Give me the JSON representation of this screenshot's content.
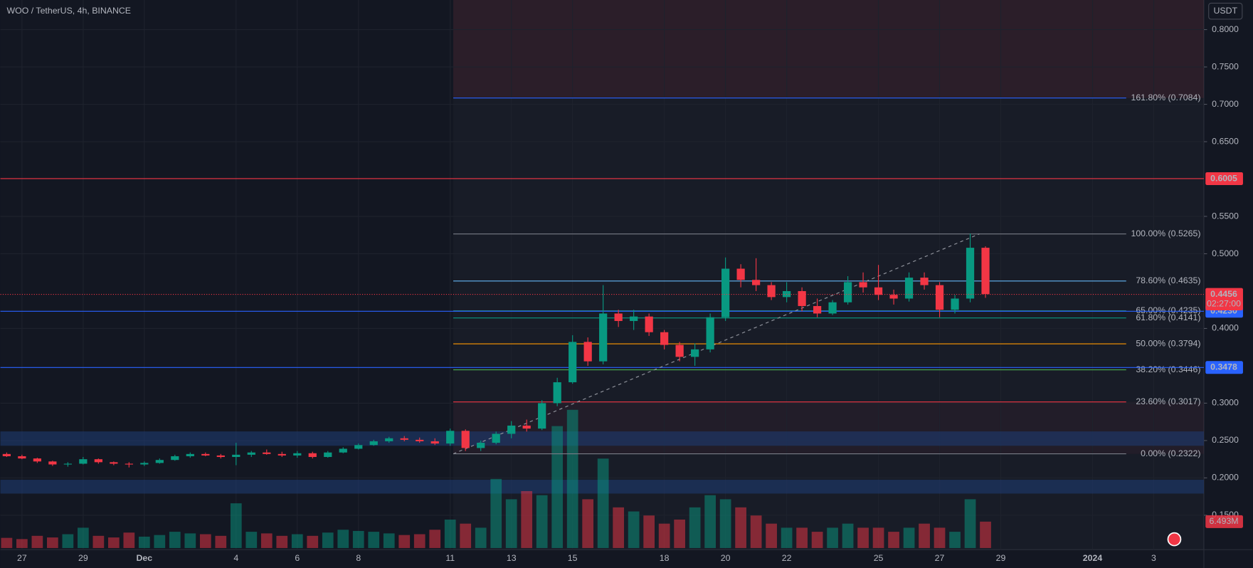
{
  "header": {
    "title": "WOO / TetherUS, 4h, BINANCE",
    "currency": "USDT"
  },
  "chart_data": {
    "type": "candlestick",
    "xlim": [
      0.295,
      39.64
    ],
    "xticks": [
      {
        "value": 1,
        "label": "27"
      },
      {
        "value": 3,
        "label": "29"
      },
      {
        "value": 5,
        "label": "Dec"
      },
      {
        "value": 8,
        "label": "4"
      },
      {
        "value": 10,
        "label": "6"
      },
      {
        "value": 12,
        "label": "8"
      },
      {
        "value": 15,
        "label": "11"
      },
      {
        "value": 17,
        "label": "13"
      },
      {
        "value": 19,
        "label": "15"
      },
      {
        "value": 22,
        "label": "18"
      },
      {
        "value": 24,
        "label": "20"
      },
      {
        "value": 26,
        "label": "22"
      },
      {
        "value": 29,
        "label": "25"
      },
      {
        "value": 31,
        "label": "27"
      },
      {
        "value": 33,
        "label": "29"
      },
      {
        "value": 36,
        "label": "2024"
      },
      {
        "value": 38,
        "label": "3"
      }
    ],
    "ylim": [
      0.104,
      0.8396
    ],
    "yticks": [
      {
        "value": 0.8,
        "label": "0.8000"
      },
      {
        "value": 0.75,
        "label": "0.7500"
      },
      {
        "value": 0.7,
        "label": "0.7000"
      },
      {
        "value": 0.65,
        "label": "0.6500"
      },
      {
        "value": 0.55,
        "label": "0.5500"
      },
      {
        "value": 0.5,
        "label": "0.5000"
      },
      {
        "value": 0.4,
        "label": "0.4000"
      },
      {
        "value": 0.3,
        "label": "0.3000"
      },
      {
        "value": 0.25,
        "label": "0.2500"
      },
      {
        "value": 0.2,
        "label": "0.2000"
      },
      {
        "value": 0.15,
        "label": "0.1500"
      }
    ],
    "grid": true,
    "up_color": "#089981",
    "down_color": "#f23645",
    "x": [
      0.5,
      1,
      1.5,
      2,
      2.5,
      3,
      3.5,
      4,
      4.5,
      5,
      5.5,
      6,
      6.5,
      7,
      7.5,
      8,
      8.5,
      9,
      9.5,
      10,
      10.5,
      11,
      11.5,
      12,
      12.5,
      13,
      13.5,
      14,
      14.5,
      15,
      15.5,
      16,
      16.5,
      17,
      17.5,
      18,
      18.5,
      19,
      19.5,
      20,
      20.5,
      21,
      21.5,
      22,
      22.5,
      23,
      23.5,
      24,
      24.5,
      25,
      25.5,
      26,
      26.5,
      27,
      27.5,
      28,
      28.5,
      29,
      29.5,
      30,
      30.5,
      31,
      31.5,
      32,
      32.5
    ],
    "candles": [
      [
        0.232,
        0.234,
        0.228,
        0.229
      ],
      [
        0.229,
        0.231,
        0.225,
        0.226
      ],
      [
        0.226,
        0.227,
        0.22,
        0.222
      ],
      [
        0.222,
        0.223,
        0.216,
        0.218
      ],
      [
        0.218,
        0.221,
        0.215,
        0.219
      ],
      [
        0.219,
        0.228,
        0.218,
        0.225
      ],
      [
        0.225,
        0.226,
        0.219,
        0.221
      ],
      [
        0.221,
        0.222,
        0.217,
        0.219
      ],
      [
        0.219,
        0.221,
        0.214,
        0.218
      ],
      [
        0.218,
        0.222,
        0.216,
        0.22
      ],
      [
        0.22,
        0.226,
        0.219,
        0.224
      ],
      [
        0.224,
        0.231,
        0.223,
        0.229
      ],
      [
        0.229,
        0.234,
        0.227,
        0.232
      ],
      [
        0.232,
        0.234,
        0.229,
        0.23
      ],
      [
        0.23,
        0.232,
        0.226,
        0.228
      ],
      [
        0.228,
        0.247,
        0.217,
        0.231
      ],
      [
        0.231,
        0.236,
        0.228,
        0.234
      ],
      [
        0.234,
        0.238,
        0.231,
        0.232
      ],
      [
        0.232,
        0.235,
        0.228,
        0.23
      ],
      [
        0.23,
        0.236,
        0.227,
        0.233
      ],
      [
        0.233,
        0.235,
        0.226,
        0.228
      ],
      [
        0.228,
        0.236,
        0.227,
        0.234
      ],
      [
        0.234,
        0.241,
        0.233,
        0.239
      ],
      [
        0.239,
        0.246,
        0.238,
        0.244
      ],
      [
        0.244,
        0.251,
        0.243,
        0.249
      ],
      [
        0.249,
        0.255,
        0.247,
        0.253
      ],
      [
        0.253,
        0.256,
        0.249,
        0.251
      ],
      [
        0.251,
        0.254,
        0.247,
        0.249
      ],
      [
        0.249,
        0.253,
        0.244,
        0.246
      ],
      [
        0.246,
        0.266,
        0.243,
        0.263
      ],
      [
        0.263,
        0.265,
        0.236,
        0.24
      ],
      [
        0.24,
        0.25,
        0.236,
        0.247
      ],
      [
        0.247,
        0.262,
        0.245,
        0.259
      ],
      [
        0.259,
        0.276,
        0.253,
        0.27
      ],
      [
        0.27,
        0.278,
        0.262,
        0.266
      ],
      [
        0.266,
        0.304,
        0.264,
        0.3
      ],
      [
        0.3,
        0.334,
        0.296,
        0.328
      ],
      [
        0.328,
        0.391,
        0.326,
        0.382
      ],
      [
        0.382,
        0.388,
        0.35,
        0.356
      ],
      [
        0.356,
        0.458,
        0.352,
        0.42
      ],
      [
        0.42,
        0.425,
        0.402,
        0.41
      ],
      [
        0.41,
        0.425,
        0.398,
        0.416
      ],
      [
        0.416,
        0.42,
        0.39,
        0.395
      ],
      [
        0.395,
        0.398,
        0.372,
        0.378
      ],
      [
        0.378,
        0.382,
        0.356,
        0.362
      ],
      [
        0.362,
        0.38,
        0.35,
        0.372
      ],
      [
        0.372,
        0.42,
        0.368,
        0.415
      ],
      [
        0.415,
        0.495,
        0.41,
        0.48
      ],
      [
        0.48,
        0.486,
        0.455,
        0.465
      ],
      [
        0.465,
        0.494,
        0.45,
        0.458
      ],
      [
        0.458,
        0.462,
        0.438,
        0.442
      ],
      [
        0.442,
        0.462,
        0.435,
        0.45
      ],
      [
        0.45,
        0.455,
        0.423,
        0.43
      ],
      [
        0.43,
        0.44,
        0.415,
        0.42
      ],
      [
        0.42,
        0.438,
        0.418,
        0.435
      ],
      [
        0.435,
        0.47,
        0.432,
        0.462
      ],
      [
        0.462,
        0.475,
        0.448,
        0.455
      ],
      [
        0.455,
        0.485,
        0.438,
        0.445
      ],
      [
        0.445,
        0.452,
        0.432,
        0.44
      ],
      [
        0.44,
        0.475,
        0.436,
        0.468
      ],
      [
        0.468,
        0.475,
        0.452,
        0.458
      ],
      [
        0.458,
        0.462,
        0.415,
        0.425
      ],
      [
        0.425,
        0.445,
        0.42,
        0.44
      ],
      [
        0.44,
        0.527,
        0.435,
        0.508
      ],
      [
        0.508,
        0.51,
        0.441,
        0.446
      ]
    ],
    "volume": {
      "vlim": [
        0,
        34
      ],
      "last_label": "6.493M",
      "values": [
        2.5,
        2.2,
        3,
        2.6,
        3.4,
        5,
        3,
        2.6,
        3.8,
        2.8,
        3.2,
        4,
        3.6,
        3.4,
        3,
        11,
        4,
        3.6,
        3,
        3.4,
        3,
        3.8,
        4.5,
        4.2,
        4,
        3.6,
        3.2,
        3.4,
        4.5,
        7,
        6,
        5,
        17,
        12,
        14,
        13,
        30,
        34,
        12,
        22,
        10,
        9,
        8,
        6,
        7,
        10,
        13,
        12,
        10,
        8,
        6,
        5,
        5,
        4,
        5,
        6,
        5,
        5,
        4,
        5,
        6,
        5,
        4,
        12,
        6.493
      ]
    },
    "fib_levels": [
      {
        "value": 0.7084,
        "label": "161.80% (0.7084)",
        "color": "#2962ff"
      },
      {
        "value": 0.5265,
        "label": "100.00% (0.5265)",
        "color": "#787b86"
      },
      {
        "value": 0.4635,
        "label": "78.60% (0.4635)",
        "color": "#64b5f6"
      },
      {
        "value": 0.4235,
        "label": "65.00% (0.4235)",
        "color": "#22ab94"
      },
      {
        "value": 0.4141,
        "label": "61.80% (0.4141)",
        "color": "#089981"
      },
      {
        "value": 0.3794,
        "label": "50.00% (0.3794)",
        "color": "#ff9800"
      },
      {
        "value": 0.3446,
        "label": "38.20% (0.3446)",
        "color": "#4caf50"
      },
      {
        "value": 0.3017,
        "label": "23.60% (0.3017)",
        "color": "#f23645"
      },
      {
        "value": 0.2322,
        "label": "0.00% (0.2322)",
        "color": "#787b86"
      }
    ],
    "fib_x": [
      15.1,
      37.1
    ],
    "trend_line": {
      "x": [
        15.1,
        32.3
      ],
      "y": [
        0.2322,
        0.5265
      ]
    },
    "zones": [
      {
        "y": [
          0.243,
          0.2622
        ],
        "color": "#1e3a70"
      },
      {
        "y": [
          0.179,
          0.1975
        ],
        "color": "#1e3a70"
      }
    ],
    "price_lines": [
      {
        "value": 0.6005,
        "label": "0.6005",
        "color": "#f23645"
      },
      {
        "value": 0.423,
        "label": "0.4230",
        "color": "#2962ff"
      },
      {
        "value": 0.3478,
        "label": "0.3478",
        "color": "#2962ff"
      }
    ],
    "last_price": {
      "value": 0.4456,
      "label": "0.4456",
      "countdown": "02:27:00",
      "color": "#f23645"
    }
  }
}
